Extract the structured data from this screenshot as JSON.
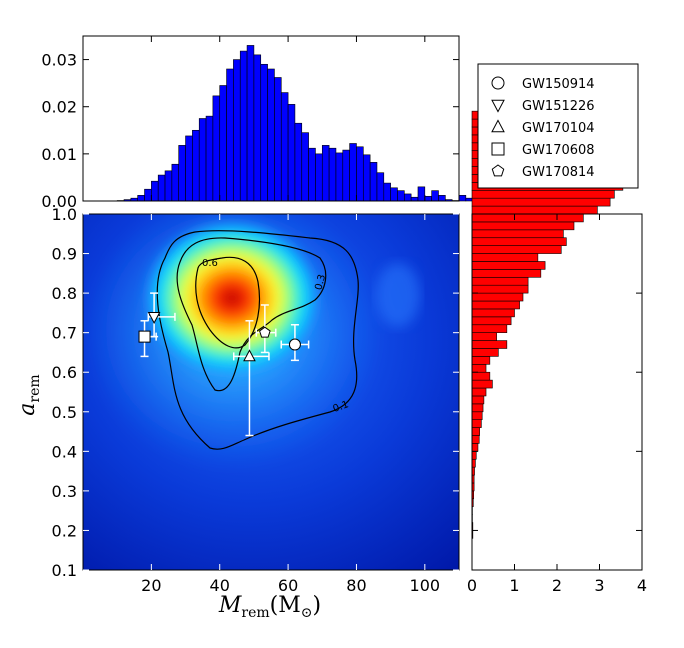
{
  "chart_data": [
    {
      "type": "bar",
      "panel": "top-marginal",
      "x_ticks": [],
      "y_ticks": [
        "0.00",
        "0.01",
        "0.02",
        "0.03"
      ],
      "ylim": [
        0,
        0.035
      ],
      "xlim": [
        0,
        110
      ],
      "color": "#0000ff",
      "bin_width": 2,
      "bin_start": 10,
      "values": [
        0.0001,
        0.0003,
        0.0006,
        0.0012,
        0.0025,
        0.0042,
        0.0055,
        0.0064,
        0.0078,
        0.0118,
        0.0138,
        0.015,
        0.0175,
        0.018,
        0.0223,
        0.0245,
        0.028,
        0.03,
        0.0318,
        0.033,
        0.031,
        0.029,
        0.028,
        0.0262,
        0.023,
        0.0205,
        0.0165,
        0.0145,
        0.0112,
        0.01,
        0.0118,
        0.0112,
        0.0102,
        0.0108,
        0.0122,
        0.0115,
        0.0098,
        0.0082,
        0.006,
        0.0038,
        0.0028,
        0.0022,
        0.0015,
        0.0008,
        0.003,
        0.001,
        0.0022,
        0.0012,
        0.0003,
        0.0001,
        0.0012,
        0.0006,
        0.0002,
        0.0002,
        0.0001
      ]
    },
    {
      "type": "heatmap",
      "panel": "main",
      "xlabel_main": "M",
      "xlabel_sub": "rem",
      "xlabel_unit": "(M",
      "xlabel_unit_sub": "⊙",
      "xlabel_close": ")",
      "ylabel_main": "a",
      "ylabel_sub": "rem",
      "xlim": [
        0,
        110
      ],
      "ylim": [
        0.1,
        1.0
      ],
      "x_ticks": [
        "20",
        "40",
        "60",
        "80",
        "100"
      ],
      "y_ticks": [
        "0.1",
        "0.2",
        "0.3",
        "0.4",
        "0.5",
        "0.6",
        "0.7",
        "0.8",
        "0.9",
        "1.0"
      ],
      "contour_labels": [
        "0.6",
        "0.3",
        "0.1"
      ],
      "peak": {
        "x": 44,
        "y": 0.79
      },
      "events": [
        {
          "name": "GW150914",
          "marker": "circle",
          "x": 62,
          "y": 0.67,
          "xerr": [
            4,
            4
          ],
          "yerr": [
            0.04,
            0.05
          ]
        },
        {
          "name": "GW151226",
          "marker": "triangle-down",
          "x": 20.8,
          "y": 0.74,
          "xerr": [
            1.7,
            6.1
          ],
          "yerr": [
            0.05,
            0.06
          ]
        },
        {
          "name": "GW170104",
          "marker": "triangle-up",
          "x": 48.7,
          "y": 0.64,
          "xerr": [
            4.6,
            5.7
          ],
          "yerr": [
            0.2,
            0.09
          ]
        },
        {
          "name": "GW170608",
          "marker": "square",
          "x": 18,
          "y": 0.69,
          "xerr": [
            0.9,
            3.4
          ],
          "yerr": [
            0.05,
            0.04
          ]
        },
        {
          "name": "GW170814",
          "marker": "pentagon",
          "x": 53.2,
          "y": 0.7,
          "xerr": [
            2.5,
            3.2
          ],
          "yerr": [
            0.05,
            0.07
          ]
        }
      ]
    },
    {
      "type": "bar",
      "panel": "right-marginal",
      "orientation": "horizontal",
      "x_ticks": [
        "0",
        "1",
        "2",
        "3",
        "4"
      ],
      "y_ticks": [],
      "xlim": [
        0,
        4
      ],
      "ylim": [
        0.1,
        1.0
      ],
      "color": "#ff0000",
      "bin_width": 0.02,
      "bin_start": 0.18,
      "values": [
        0.02,
        0.02,
        0.01,
        0.01,
        0.03,
        0.04,
        0.05,
        0.05,
        0.06,
        0.08,
        0.1,
        0.14,
        0.17,
        0.18,
        0.22,
        0.24,
        0.26,
        0.28,
        0.33,
        0.48,
        0.42,
        0.33,
        0.42,
        0.62,
        0.82,
        0.58,
        0.82,
        0.92,
        1.0,
        1.12,
        1.2,
        1.32,
        1.32,
        1.62,
        1.72,
        1.55,
        2.1,
        2.22,
        2.15,
        2.4,
        2.62,
        2.95,
        3.25,
        3.35,
        3.55,
        3.3,
        3.05,
        2.72,
        2.62,
        1.85,
        1.32,
        0.52,
        0.35,
        0.25
      ]
    }
  ],
  "legend": {
    "placement": "top-right",
    "entries": [
      {
        "label": "GW150914",
        "marker": "circle"
      },
      {
        "label": "GW151226",
        "marker": "triangle-down"
      },
      {
        "label": "GW170104",
        "marker": "triangle-up"
      },
      {
        "label": "GW170608",
        "marker": "square"
      },
      {
        "label": "GW170814",
        "marker": "pentagon"
      }
    ]
  }
}
